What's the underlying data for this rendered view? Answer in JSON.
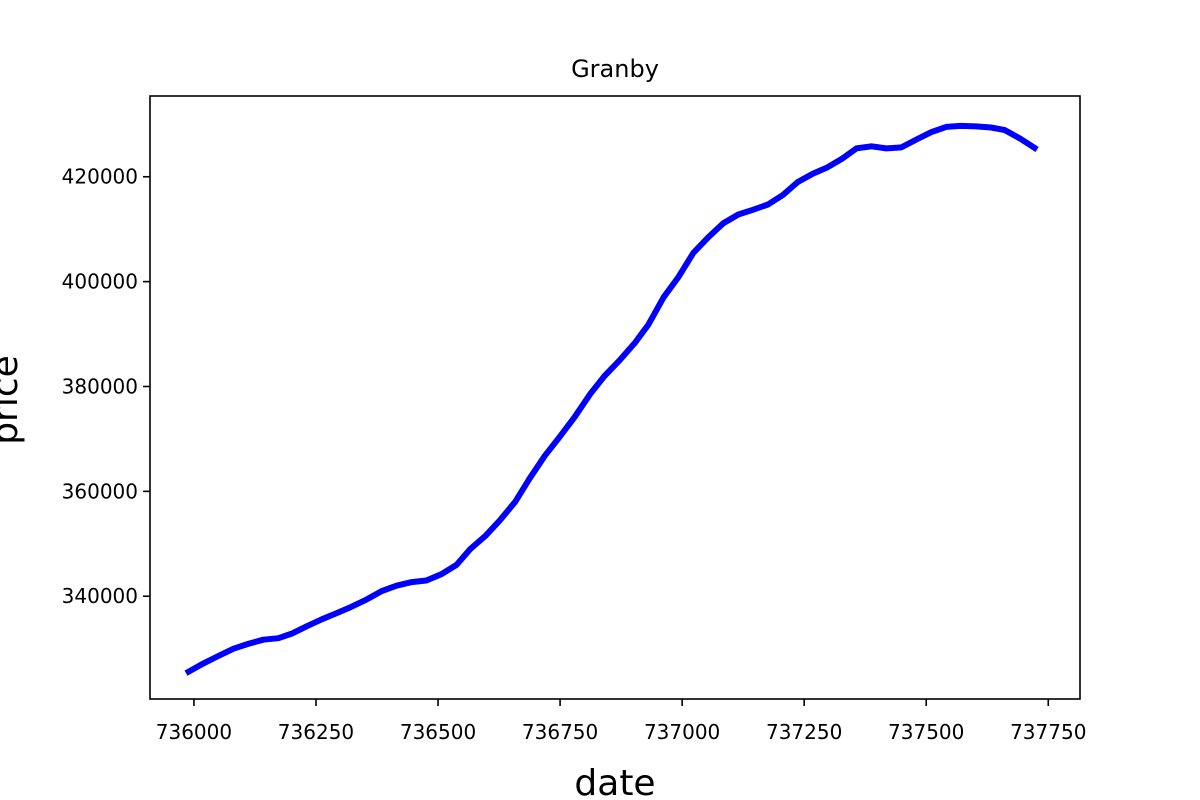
{
  "chart_data": {
    "type": "line",
    "title": "Granby",
    "xlabel": "date",
    "ylabel": "price",
    "xlim": [
      735910,
      737815
    ],
    "ylim": [
      320400,
      435400
    ],
    "xticks": [
      736000,
      736250,
      736500,
      736750,
      737000,
      737250,
      737500,
      737750
    ],
    "yticks": [
      340000,
      360000,
      380000,
      400000,
      420000
    ],
    "grid": false,
    "series": [
      {
        "color": "#0000ff",
        "x": [
          735989,
          736020,
          736050,
          736081,
          736111,
          736142,
          736173,
          736201,
          736232,
          736262,
          736293,
          736323,
          736354,
          736385,
          736415,
          736446,
          736476,
          736507,
          736538,
          736566,
          736597,
          736627,
          736658,
          736688,
          736719,
          736750,
          736780,
          736811,
          736841,
          736872,
          736903,
          736931,
          736962,
          736992,
          737023,
          737053,
          737084,
          737115,
          737145,
          737176,
          737206,
          737237,
          737268,
          737296,
          737327,
          737357,
          737388,
          737418,
          737449,
          737480,
          737510,
          737541,
          737571,
          737602,
          737633,
          737661,
          737692,
          737722
        ],
        "y": [
          325600,
          327200,
          328600,
          330000,
          330900,
          331700,
          332000,
          332900,
          334300,
          335600,
          336800,
          338000,
          339400,
          341000,
          342000,
          342700,
          343000,
          344200,
          346000,
          349000,
          351500,
          354500,
          358000,
          362500,
          366800,
          370500,
          374200,
          378500,
          382000,
          385000,
          388300,
          391800,
          397000,
          400800,
          405500,
          408400,
          411100,
          412800,
          413700,
          414700,
          416500,
          419000,
          420600,
          421700,
          423400,
          425400,
          425800,
          425400,
          425600,
          427100,
          428500,
          429500,
          429700,
          429600,
          429400,
          428900,
          427300,
          425500
        ]
      }
    ]
  }
}
